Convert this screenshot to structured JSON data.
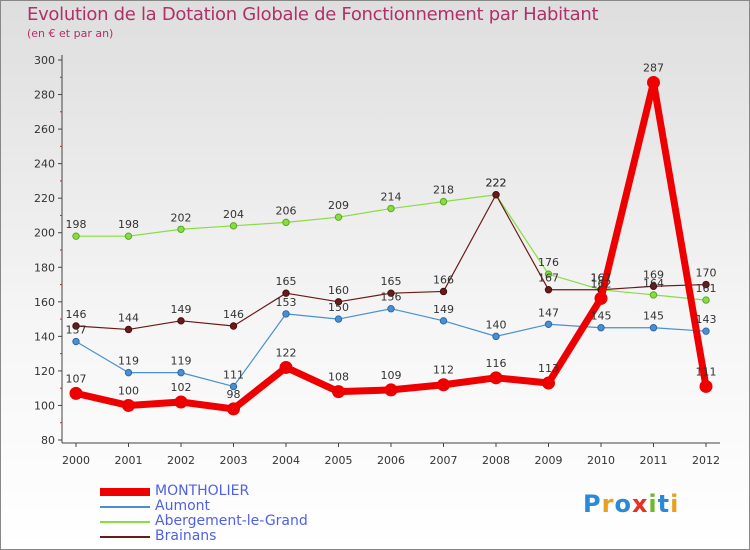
{
  "title": "Evolution de la Dotation Globale de Fonctionnement par Habitant",
  "subtitle": "(en € et par an)",
  "logo": {
    "text": "Proxiti",
    "letters": [
      {
        "ch": "P",
        "color": "#2a8ad8"
      },
      {
        "ch": "r",
        "color": "#e8a020"
      },
      {
        "ch": "o",
        "color": "#2a8ad8"
      },
      {
        "ch": "x",
        "color": "#e83020"
      },
      {
        "ch": "i",
        "color": "#70b830"
      },
      {
        "ch": "t",
        "color": "#2a8ad8"
      },
      {
        "ch": "i",
        "color": "#e8a020"
      }
    ]
  },
  "chart_data": {
    "type": "line",
    "title": "Evolution de la Dotation Globale de Fonctionnement par Habitant",
    "subtitle": "(en € et par an)",
    "xlabel": "",
    "ylabel": "",
    "ylim": [
      80,
      300
    ],
    "yticks": [
      80,
      100,
      120,
      140,
      160,
      180,
      200,
      220,
      240,
      260,
      280,
      300
    ],
    "grid": false,
    "legend": "bottom-left",
    "x": [
      "2000",
      "2001",
      "2002",
      "2003",
      "2004",
      "2005",
      "2006",
      "2007",
      "2008",
      "2009",
      "2010",
      "2011",
      "2012"
    ],
    "series": [
      {
        "name": "MONTHOLIER",
        "color": "#ee0000",
        "values": [
          107,
          100,
          102,
          98,
          122,
          108,
          109,
          112,
          116,
          113,
          162,
          287,
          111
        ],
        "labels": [
          "107",
          "100",
          "102",
          "98",
          "122",
          "108",
          "109",
          "112",
          "116",
          "113",
          "162",
          "287",
          "111"
        ]
      },
      {
        "name": "Aumont",
        "color": "#4a90d0",
        "values": [
          137,
          119,
          119,
          111,
          153,
          150,
          156,
          149,
          140,
          147,
          145,
          145,
          143
        ],
        "labels": [
          "137",
          "119",
          "119",
          "111",
          "153",
          "150",
          "156",
          "149",
          "140",
          "147",
          "145",
          "145",
          "143"
        ]
      },
      {
        "name": "Abergement-le-Grand",
        "color": "#88dd44",
        "values": [
          198,
          198,
          202,
          204,
          206,
          209,
          214,
          218,
          222,
          176,
          167,
          164,
          161
        ],
        "labels": [
          "198",
          "198",
          "202",
          "204",
          "206",
          "209",
          "214",
          "218",
          "222",
          "176",
          "167",
          "164",
          "161"
        ]
      },
      {
        "name": "Brainans",
        "color": "#6b1a1a",
        "values": [
          146,
          144,
          149,
          146,
          165,
          160,
          165,
          166,
          222,
          167,
          167,
          169,
          170
        ],
        "labels": [
          "146",
          "144",
          "149",
          "146",
          "165",
          "160",
          "165",
          "166",
          "222",
          "167",
          "167",
          "169",
          "170"
        ]
      }
    ]
  }
}
